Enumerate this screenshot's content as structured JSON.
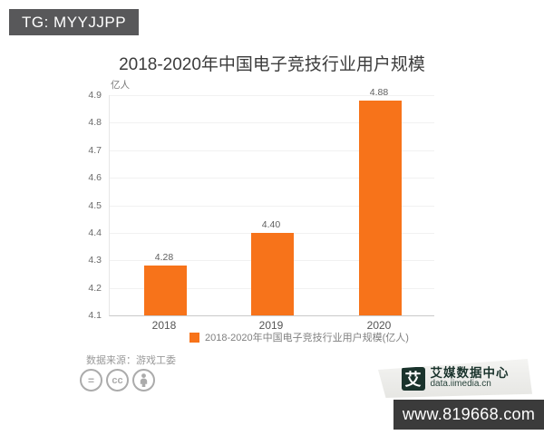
{
  "banner": {
    "text": "TG: MYYJJPP"
  },
  "chart_data": {
    "type": "bar",
    "title": "2018-2020年中国电子竞技行业用户规模",
    "unit": "亿人",
    "categories": [
      "2018",
      "2019",
      "2020"
    ],
    "values": [
      4.28,
      4.4,
      4.88
    ],
    "value_labels": [
      "4.28",
      "4.40",
      "4.88"
    ],
    "ylim": [
      4.1,
      4.9
    ],
    "yticks": [
      4.1,
      4.2,
      4.3,
      4.4,
      4.5,
      4.6,
      4.7,
      4.8,
      4.9
    ],
    "ytick_labels": [
      "4.1",
      "4.2",
      "4.3",
      "4.4",
      "4.5",
      "4.6",
      "4.7",
      "4.8",
      "4.9"
    ],
    "grid": true,
    "bar_color": "#f7731a",
    "legend": {
      "label": "2018-2020年中国电子竞技行业用户规模(亿人)",
      "position": "bottom",
      "swatch_color": "#f7731a"
    }
  },
  "footer": {
    "source": "数据来源：游戏工委",
    "license_icons": [
      {
        "name": "equals-nd-icon",
        "glyph": "="
      },
      {
        "name": "cc-icon",
        "glyph": "cc"
      },
      {
        "name": "person-by-icon",
        "glyph": "person"
      }
    ],
    "logo": {
      "mark": "艾",
      "name": "艾媒数据中心",
      "domain": "data.iimedia.cn",
      "brand_color": "#1a332c"
    },
    "watermark": {
      "text": "www.819668.com",
      "bg_color": "#3b3b3b"
    }
  }
}
